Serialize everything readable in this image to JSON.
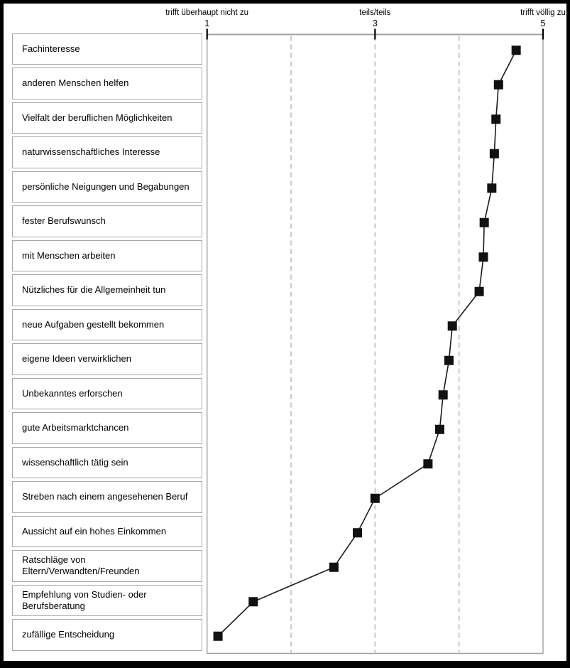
{
  "chart_data": {
    "type": "scatter",
    "variant": "horizontal-dot-plot-with-connecting-line",
    "title": "",
    "xlabel": "",
    "ylabel": "",
    "xlim": [
      1,
      5
    ],
    "grid": "vertical-dashed",
    "gridlines_at": [
      2,
      3,
      4
    ],
    "axis_anchors": [
      {
        "value": 1,
        "tick": "1",
        "caption": "trifft überhaupt nicht zu"
      },
      {
        "value": 3,
        "tick": "3",
        "caption": "teils/teils"
      },
      {
        "value": 5,
        "tick": "5",
        "caption": "trifft völlig zu"
      }
    ],
    "categories": [
      "Fachinteresse",
      "anderen Menschen helfen",
      "Vielfalt der beruflichen Möglichkeiten",
      "naturwissenschaftliches Interesse",
      "persönliche Neigungen und Begabungen",
      "fester Berufswunsch",
      "mit Menschen arbeiten",
      "Nützliches für die Allgemeinheit tun",
      "neue Aufgaben gestellt bekommen",
      "eigene Ideen verwirklichen",
      "Unbekanntes erforschen",
      "gute Arbeitsmarktchancen",
      "wissenschaftlich tätig sein",
      "Streben nach einem angesehenen Beruf",
      "Aussicht auf ein hohes Einkommen",
      "Ratschläge von Eltern/Verwandten/Freunden",
      "Empfehlung von Studien- oder Berufsberatung",
      "zufällige Entscheidung"
    ],
    "values": [
      4.68,
      4.47,
      4.44,
      4.42,
      4.39,
      4.3,
      4.29,
      4.24,
      3.92,
      3.88,
      3.81,
      3.77,
      3.63,
      3.0,
      2.79,
      2.51,
      1.55,
      1.13
    ],
    "marker": "filled-square",
    "legend": "none"
  },
  "colors": {
    "marker": "#111111",
    "line": "#1a1a1a",
    "axis": "#a0a0a0",
    "gridline": "#b4b4b4",
    "box_border": "#a8a8a8",
    "text": "#000000",
    "frame": "#000000",
    "background": "#ffffff"
  }
}
